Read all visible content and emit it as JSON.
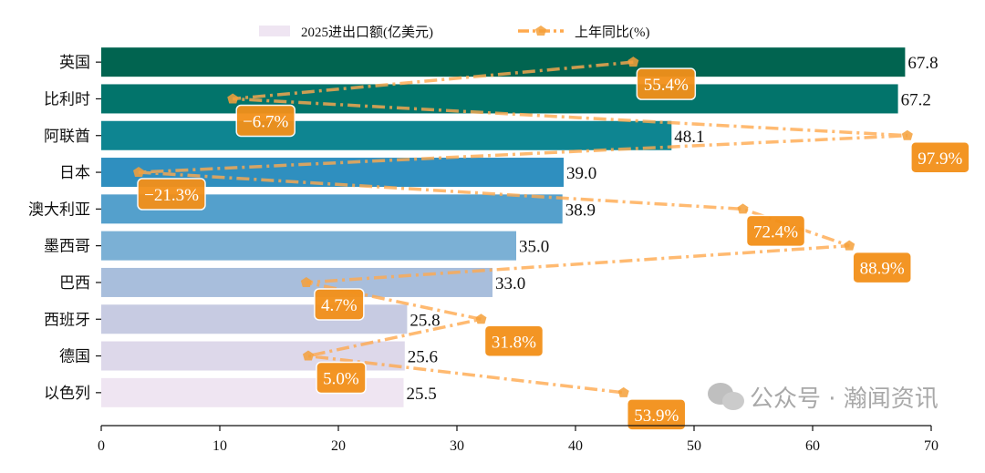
{
  "chart_data": {
    "type": "bar",
    "orientation": "horizontal",
    "categories": [
      "英国",
      "比利时",
      "阿联酋",
      "日本",
      "澳大利亚",
      "墨西哥",
      "巴西",
      "西班牙",
      "德国",
      "以色列"
    ],
    "series": [
      {
        "name": "2025进出口额(亿美元)",
        "type": "bar",
        "values": [
          67.8,
          67.2,
          48.1,
          39.0,
          38.9,
          35.0,
          33.0,
          25.8,
          25.6,
          25.5
        ],
        "value_labels": [
          "67.8",
          "67.2",
          "48.1",
          "39.0",
          "38.9",
          "35.0",
          "33.0",
          "25.8",
          "25.6",
          "25.5"
        ],
        "colors": [
          "#016450",
          "#02746b",
          "#0e8591",
          "#2f8fbf",
          "#54a0cc",
          "#7bb0d5",
          "#a8bedc",
          "#c7cbe2",
          "#ddd8ea",
          "#efe5f2"
        ]
      },
      {
        "name": "上年同比(%)",
        "type": "line",
        "values": [
          55.4,
          -6.7,
          97.9,
          -21.3,
          72.4,
          88.9,
          4.7,
          31.8,
          5.0,
          53.9
        ],
        "value_labels": [
          "55.4%",
          "−6.7%",
          "97.9%",
          "−21.3%",
          "72.4%",
          "88.9%",
          "4.7%",
          "31.8%",
          "5.0%",
          "53.9%"
        ],
        "color": "#ffa94d",
        "label_color": "#f39019",
        "line_style": "dash-dot",
        "marker": "pentagon",
        "axis": "secondary-hidden"
      }
    ],
    "x_ticks": [
      "0",
      "10",
      "20",
      "30",
      "40",
      "50",
      "60",
      "70"
    ],
    "xlim": [
      0,
      70
    ],
    "secondary_xlim": [
      -27.1,
      101.6
    ],
    "legend_placement": "top-center",
    "grid": false
  },
  "watermark": "公众号 · 瀚闻资讯"
}
